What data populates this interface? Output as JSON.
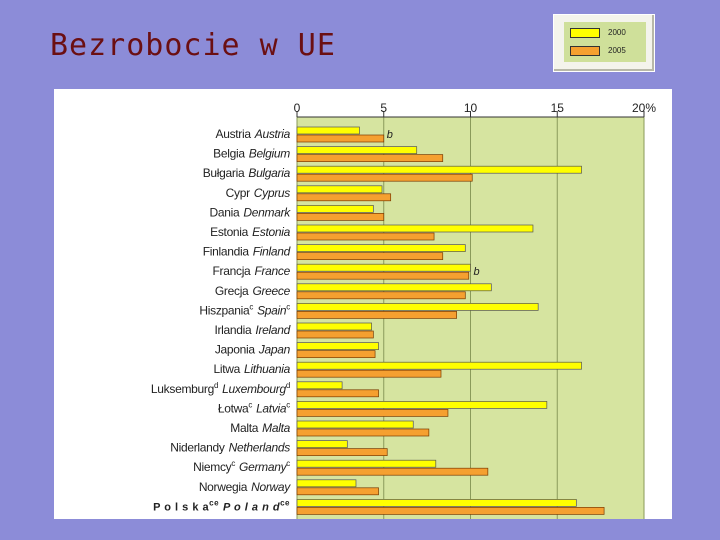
{
  "slide": {
    "title": "Bezrobocie w UE"
  },
  "chart_data": {
    "type": "bar",
    "orientation": "horizontal",
    "categories": [
      {
        "pl": "Austria",
        "en": "Austria",
        "note": ""
      },
      {
        "pl": "Belgia",
        "en": "Belgium",
        "note": ""
      },
      {
        "pl": "Bułgaria",
        "en": "Bulgaria",
        "note": ""
      },
      {
        "pl": "Cypr",
        "en": "Cyprus",
        "note": ""
      },
      {
        "pl": "Dania",
        "en": "Denmark",
        "note": ""
      },
      {
        "pl": "Estonia",
        "en": "Estonia",
        "note": ""
      },
      {
        "pl": "Finlandia",
        "en": "Finland",
        "note": ""
      },
      {
        "pl": "Francja",
        "en": "France",
        "note": ""
      },
      {
        "pl": "Grecja",
        "en": "Greece",
        "note": ""
      },
      {
        "pl": "Hiszpania",
        "en": "Spain",
        "note": "c"
      },
      {
        "pl": "Irlandia",
        "en": "Ireland",
        "note": ""
      },
      {
        "pl": "Japonia",
        "en": "Japan",
        "note": ""
      },
      {
        "pl": "Litwa",
        "en": "Lithuania",
        "note": ""
      },
      {
        "pl": "Luksemburg",
        "en": "Luxembourg",
        "note": "d"
      },
      {
        "pl": "Łotwa",
        "en": "Latvia",
        "note": "c"
      },
      {
        "pl": "Malta",
        "en": "Malta",
        "note": ""
      },
      {
        "pl": "Niderlandy",
        "en": "Netherlands",
        "note": ""
      },
      {
        "pl": "Niemcy",
        "en": "Germany",
        "note": "c"
      },
      {
        "pl": "Norwegia",
        "en": "Norway",
        "note": ""
      },
      {
        "pl": "P o l s k a",
        "en": "P o l a n d",
        "note": "ce"
      }
    ],
    "series": [
      {
        "name": "2000",
        "color": "#ffff00",
        "values": [
          3.6,
          6.9,
          16.4,
          4.9,
          4.4,
          13.6,
          9.7,
          10.0,
          11.2,
          13.9,
          4.3,
          4.7,
          16.4,
          2.6,
          14.4,
          6.7,
          2.9,
          8.0,
          3.4,
          16.1
        ]
      },
      {
        "name": "2005",
        "color": "#f5a030",
        "values": [
          5.0,
          8.4,
          10.1,
          5.4,
          5.0,
          7.9,
          8.4,
          9.9,
          9.7,
          9.2,
          4.4,
          4.5,
          8.3,
          4.7,
          8.7,
          7.6,
          5.2,
          11.0,
          4.7,
          17.7
        ]
      }
    ],
    "annotations": [
      {
        "category_index": 0,
        "text": "b"
      },
      {
        "category_index": 7,
        "text": "b"
      }
    ],
    "xlim": [
      0,
      20
    ],
    "xticks": [
      "0",
      "5",
      "10",
      "15",
      "20%"
    ],
    "legend_position": "top-right",
    "grid": true,
    "plot_background": "#d6e4a0"
  }
}
